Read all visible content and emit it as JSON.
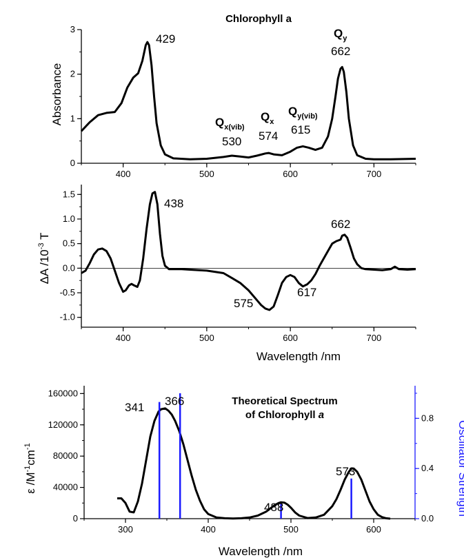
{
  "chart_data": [
    {
      "type": "line",
      "title": "Chlorophyll a",
      "xlabel": "",
      "ylabel": "Absorbance",
      "xlim": [
        350,
        750
      ],
      "ylim": [
        0,
        3
      ],
      "xticks": [
        "400",
        "500",
        "600",
        "700"
      ],
      "yticks": [
        "0",
        "1",
        "2",
        "3"
      ],
      "series": [
        {
          "x": [
            350,
            360,
            370,
            380,
            390,
            398,
            405,
            412,
            418,
            423,
            427,
            429,
            431,
            434,
            437,
            440,
            445,
            450,
            460,
            480,
            500,
            520,
            530,
            540,
            550,
            560,
            570,
            574,
            580,
            590,
            600,
            608,
            615,
            622,
            630,
            638,
            645,
            650,
            654,
            657,
            660,
            662,
            664,
            667,
            670,
            675,
            680,
            690,
            700,
            720,
            750
          ],
          "y": [
            0.72,
            0.92,
            1.08,
            1.13,
            1.15,
            1.35,
            1.7,
            1.92,
            2.02,
            2.3,
            2.65,
            2.72,
            2.65,
            2.2,
            1.5,
            0.9,
            0.4,
            0.2,
            0.11,
            0.09,
            0.1,
            0.14,
            0.17,
            0.15,
            0.13,
            0.17,
            0.22,
            0.23,
            0.2,
            0.18,
            0.26,
            0.35,
            0.38,
            0.35,
            0.3,
            0.35,
            0.6,
            1.0,
            1.5,
            1.9,
            2.12,
            2.16,
            2.05,
            1.6,
            1.0,
            0.4,
            0.18,
            0.1,
            0.09,
            0.09,
            0.1
          ]
        }
      ],
      "annotations": {
        "peak_429": "429",
        "qy_main": "Q",
        "qy_sub": "y",
        "qy_value": "662",
        "qx_vib_main": "Q",
        "qx_vib_sub": "x(vib)",
        "qx_vib_value": "530",
        "qx_main": "Q",
        "qx_sub": "x",
        "qx_value": "574",
        "qy_vib_main": "Q",
        "qy_vib_sub": "y(vib)",
        "qy_vib_value": "615"
      }
    },
    {
      "type": "line",
      "xlabel": "Wavelength /nm",
      "ylabel_main": "ΔA /10",
      "ylabel_sup": "-3",
      "ylabel_end": " T",
      "xlim": [
        350,
        750
      ],
      "ylim": [
        -1.2,
        1.7
      ],
      "xticks": [
        "400",
        "500",
        "600",
        "700"
      ],
      "yticks": [
        "-1.0",
        "-0.5",
        "0.0",
        "0.5",
        "1.0",
        "1.5"
      ],
      "zero_line": true,
      "series": [
        {
          "x": [
            350,
            355,
            360,
            365,
            370,
            375,
            380,
            385,
            390,
            395,
            400,
            403,
            407,
            410,
            413,
            417,
            420,
            424,
            428,
            432,
            435,
            438,
            441,
            444,
            447,
            450,
            455,
            460,
            470,
            480,
            500,
            520,
            530,
            540,
            550,
            560,
            565,
            570,
            575,
            580,
            585,
            590,
            595,
            600,
            605,
            610,
            615,
            620,
            625,
            630,
            635,
            640,
            645,
            650,
            655,
            660,
            662,
            665,
            668,
            672,
            676,
            680,
            685,
            690,
            700,
            710,
            720,
            725,
            730,
            740,
            750
          ],
          "y": [
            -0.1,
            -0.05,
            0.1,
            0.28,
            0.38,
            0.4,
            0.35,
            0.2,
            -0.05,
            -0.3,
            -0.48,
            -0.45,
            -0.35,
            -0.32,
            -0.35,
            -0.38,
            -0.25,
            0.2,
            0.8,
            1.3,
            1.52,
            1.55,
            1.3,
            0.7,
            0.25,
            0.05,
            -0.02,
            -0.02,
            -0.02,
            -0.03,
            -0.05,
            -0.1,
            -0.2,
            -0.3,
            -0.45,
            -0.65,
            -0.75,
            -0.82,
            -0.85,
            -0.78,
            -0.55,
            -0.3,
            -0.18,
            -0.14,
            -0.18,
            -0.3,
            -0.37,
            -0.33,
            -0.25,
            -0.12,
            0.05,
            0.2,
            0.35,
            0.5,
            0.55,
            0.58,
            0.66,
            0.68,
            0.62,
            0.42,
            0.2,
            0.08,
            0.0,
            -0.02,
            -0.03,
            -0.04,
            -0.02,
            0.03,
            -0.02,
            -0.03,
            -0.02
          ]
        }
      ],
      "annotations": {
        "peak_438": "438",
        "peak_662": "662",
        "trough_575": "575",
        "trough_617": "617"
      }
    },
    {
      "type": "line",
      "title_line1": "Theoretical Spectrum",
      "title_line2": "of Chlorophyll ",
      "title_italic": "a",
      "xlabel": "Wavelength /nm",
      "ylabel_left_main": "ε /M",
      "ylabel_left_sup1": "-1",
      "ylabel_left_mid": "cm",
      "ylabel_left_sup2": "-1",
      "ylabel_right": "Oscillator Strength",
      "xlim": [
        250,
        650
      ],
      "ylim_left": [
        0,
        170000
      ],
      "ylim_right": [
        0,
        1.06
      ],
      "xticks": [
        "300",
        "400",
        "500",
        "600"
      ],
      "yticks_left": [
        "0",
        "40000",
        "80000",
        "120000",
        "160000"
      ],
      "yticks_right": [
        "0.0",
        "0.4",
        "0.8"
      ],
      "right_axis_color": "#1a1aff",
      "series": [
        {
          "name": "",
          "x": [
            290,
            295,
            300,
            305,
            310,
            315,
            320,
            325,
            330,
            335,
            340,
            343,
            348,
            352,
            356,
            360,
            365,
            370,
            375,
            380,
            385,
            390,
            395,
            400,
            410,
            420,
            430,
            440,
            450,
            460,
            470,
            475,
            480,
            485,
            488,
            492,
            496,
            500,
            505,
            510,
            520,
            530,
            540,
            550,
            555,
            560,
            565,
            570,
            573,
            576,
            580,
            585,
            590,
            595,
            600,
            605,
            610,
            615,
            620
          ],
          "y": [
            26000,
            26000,
            20000,
            9000,
            8000,
            22000,
            45000,
            75000,
            105000,
            125000,
            137000,
            140000,
            141000,
            138000,
            133000,
            125000,
            112000,
            95000,
            75000,
            55000,
            37000,
            23000,
            12000,
            6000,
            1500,
            500,
            300,
            500,
            1500,
            4000,
            9000,
            13000,
            17000,
            20000,
            21000,
            20500,
            18000,
            14000,
            8000,
            4000,
            800,
            1500,
            5000,
            16000,
            25000,
            37000,
            50000,
            60000,
            64000,
            64000,
            60000,
            50000,
            36000,
            22000,
            12000,
            5000,
            2000,
            500,
            0
          ]
        },
        {
          "name": "",
          "type": "stick",
          "axis": "right",
          "color": "#1a1aff",
          "x": [
            341,
            366,
            488,
            573
          ],
          "y": [
            0.93,
            1.0,
            0.12,
            0.32
          ]
        }
      ],
      "annotations": {
        "peak_341": "341",
        "peak_366": "366",
        "peak_488": "488",
        "peak_573": "573"
      }
    }
  ]
}
